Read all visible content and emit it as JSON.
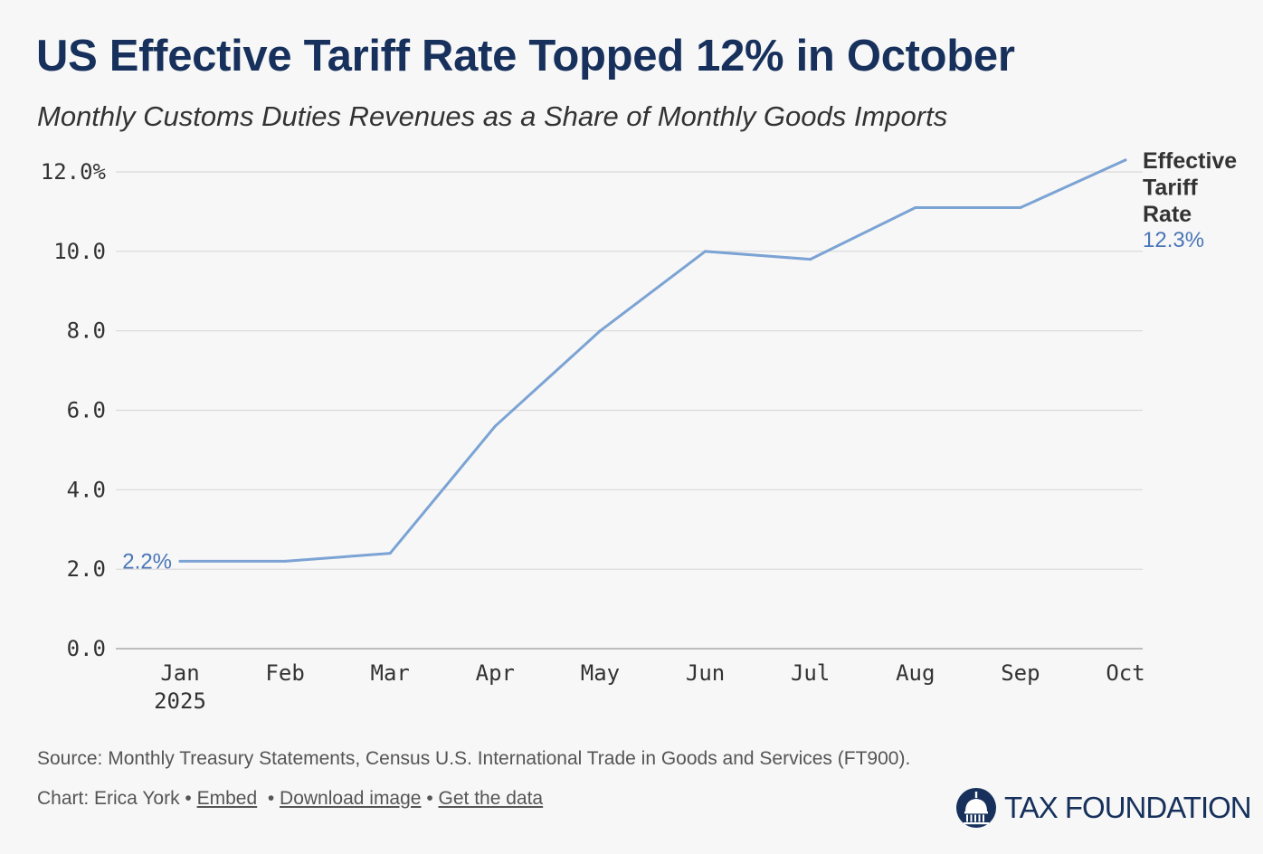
{
  "header": {
    "title": "US Effective Tariff Rate Topped 12% in October",
    "subtitle": "Monthly Customs Duties Revenues as a Share of Monthly Goods Imports"
  },
  "chart_data": {
    "type": "line",
    "title": "US Effective Tariff Rate Topped 12% in October",
    "subtitle": "Monthly Customs Duties Revenues as a Share of Monthly Goods Imports",
    "xlabel": "",
    "ylabel": "",
    "categories": [
      "Jan",
      "Feb",
      "Mar",
      "Apr",
      "May",
      "Jun",
      "Jul",
      "Aug",
      "Sep",
      "Oct"
    ],
    "x_sublabels": {
      "Jan": "2025"
    },
    "series": [
      {
        "name": "Effective Tariff Rate",
        "name_lines": [
          "Effective",
          "Tariff",
          "Rate"
        ],
        "values": [
          2.2,
          2.2,
          2.4,
          5.6,
          8.0,
          10.0,
          9.8,
          11.1,
          11.1,
          12.3
        ],
        "color": "#7ba3d4"
      }
    ],
    "annotations": {
      "start_label": "2.2%",
      "end_label": "12.3%"
    },
    "y_ticks": [
      0,
      2,
      4,
      6,
      8,
      10,
      12
    ],
    "y_tick_labels": [
      "0.0",
      "2.0",
      "4.0",
      "6.0",
      "8.0",
      "10.0",
      "12.0%"
    ],
    "ylim": [
      0,
      12.3
    ],
    "grid": true,
    "legend": "direct-label-right"
  },
  "footer": {
    "source": "Source: Monthly Treasury Statements, Census U.S. International Trade in Goods and Services (FT900).",
    "credit": "Chart: Erica York",
    "separator": "•",
    "embed_label": "Embed",
    "download_label": "Download image",
    "data_label": "Get the data",
    "logo_text": "TAX FOUNDATION"
  },
  "colors": {
    "title": "#17315c",
    "line": "#7ba3d4",
    "value_label": "#4a76b8",
    "grid": "#d9d9d9",
    "background": "#f7f7f7"
  }
}
